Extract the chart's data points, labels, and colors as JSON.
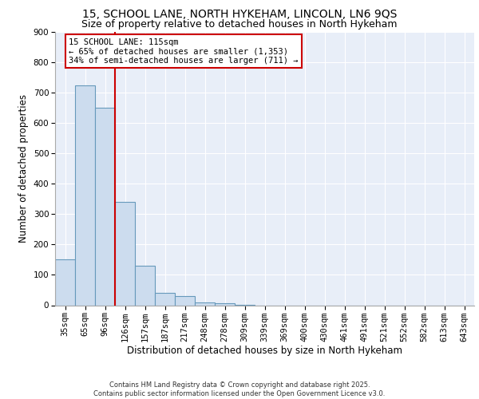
{
  "title_line1": "15, SCHOOL LANE, NORTH HYKEHAM, LINCOLN, LN6 9QS",
  "title_line2": "Size of property relative to detached houses in North Hykeham",
  "xlabel": "Distribution of detached houses by size in North Hykeham",
  "ylabel": "Number of detached properties",
  "categories": [
    "35sqm",
    "65sqm",
    "96sqm",
    "126sqm",
    "157sqm",
    "187sqm",
    "217sqm",
    "248sqm",
    "278sqm",
    "309sqm",
    "339sqm",
    "369sqm",
    "400sqm",
    "430sqm",
    "461sqm",
    "491sqm",
    "521sqm",
    "552sqm",
    "582sqm",
    "613sqm",
    "643sqm"
  ],
  "values": [
    150,
    725,
    650,
    340,
    130,
    40,
    30,
    10,
    7,
    2,
    0,
    0,
    0,
    0,
    0,
    0,
    0,
    0,
    0,
    0,
    0
  ],
  "bar_color": "#ccdcee",
  "bar_edge_color": "#6699bb",
  "vline_x": 2.5,
  "vline_color": "#cc0000",
  "annotation_text": "15 SCHOOL LANE: 115sqm\n← 65% of detached houses are smaller (1,353)\n34% of semi-detached houses are larger (711) →",
  "annotation_box_color": "#ffffff",
  "annotation_box_edge_color": "#cc0000",
  "ylim": [
    0,
    900
  ],
  "yticks": [
    0,
    100,
    200,
    300,
    400,
    500,
    600,
    700,
    800,
    900
  ],
  "background_color": "#e8eef8",
  "grid_color": "#ffffff",
  "fig_background": "#ffffff",
  "footer_text": "Contains HM Land Registry data © Crown copyright and database right 2025.\nContains public sector information licensed under the Open Government Licence v3.0.",
  "title_fontsize": 10,
  "subtitle_fontsize": 9,
  "axis_label_fontsize": 8.5,
  "tick_fontsize": 7.5,
  "annotation_fontsize": 7.5,
  "footer_fontsize": 6
}
